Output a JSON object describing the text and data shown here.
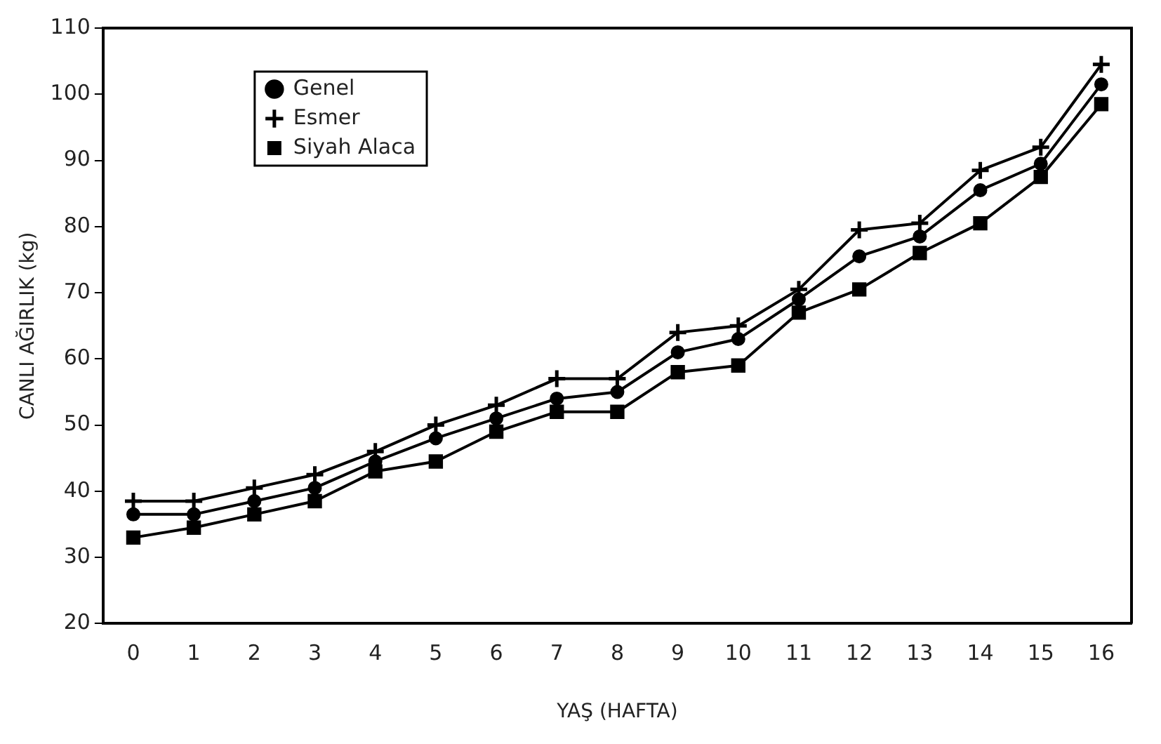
{
  "chart_data": {
    "type": "line",
    "xlabel": "YAŞ (HAFTA)",
    "ylabel": "CANLI AĞIRLIK (kg)",
    "x": [
      0,
      1,
      2,
      3,
      4,
      5,
      6,
      7,
      8,
      9,
      10,
      11,
      12,
      13,
      14,
      15,
      16
    ],
    "xlim": [
      -0.5,
      16.5
    ],
    "xticks": [
      0,
      1,
      2,
      3,
      4,
      5,
      6,
      7,
      8,
      9,
      10,
      11,
      12,
      13,
      14,
      15,
      16
    ],
    "ylim": [
      20,
      110
    ],
    "yticks": [
      20,
      30,
      40,
      50,
      60,
      70,
      80,
      90,
      100,
      110
    ],
    "grid": false,
    "legend": "top left",
    "line_style": "solid",
    "series": [
      {
        "name": "Genel",
        "color": "#000000",
        "marker": "circle",
        "values": [
          36.5,
          36.5,
          38.5,
          40.5,
          44.5,
          48,
          51,
          54,
          55,
          61,
          63,
          69,
          75.5,
          78.5,
          85.5,
          89.5,
          101.5
        ]
      },
      {
        "name": "Esmer",
        "color": "#000000",
        "marker": "cross",
        "values": [
          38.5,
          38.5,
          40.5,
          42.5,
          46,
          50,
          53,
          57,
          57,
          64,
          65,
          70.5,
          79.5,
          80.5,
          88.5,
          92,
          104.5
        ]
      },
      {
        "name": "Siyah Alaca",
        "color": "#000000",
        "marker": "square",
        "values": [
          33,
          34.5,
          36.5,
          38.5,
          43,
          44.5,
          49,
          52,
          52,
          58,
          59,
          67,
          70.5,
          76,
          80.5,
          87.5,
          98.5
        ]
      }
    ]
  }
}
